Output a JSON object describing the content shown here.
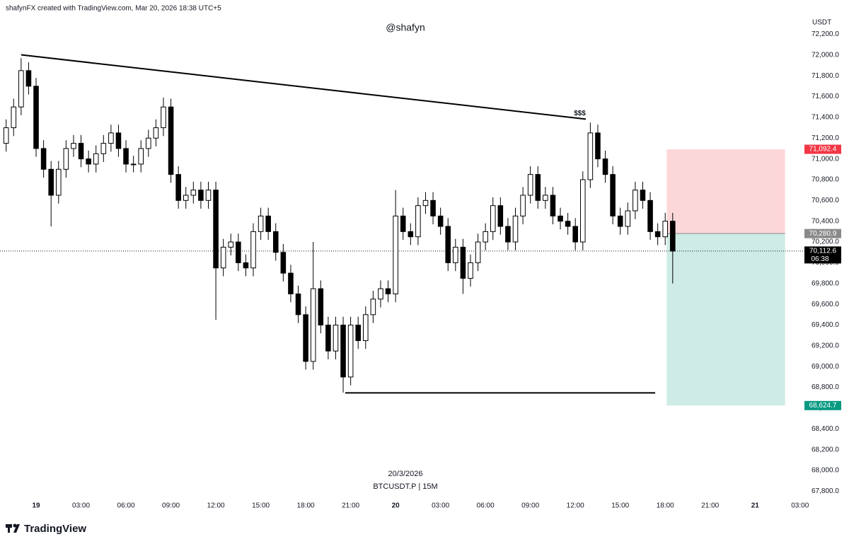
{
  "chart_data": {
    "type": "candlestick",
    "header": "shafynFX created with TradingView.com, Mar 20, 2026 18:38 UTC+5",
    "watermark": "@shafyn",
    "y_unit": "USDT",
    "date_label": "20/3/2026",
    "symbol_label": "BTCUSDT.P | 15M",
    "brand": "TradingView",
    "up_color": "#ffffff",
    "down_color": "#000000",
    "x": [
      -2,
      -1.5,
      -1,
      -0.5,
      0,
      0.5,
      1,
      1.5,
      2,
      2.5,
      3,
      3.5,
      4,
      4.5,
      5,
      5.5,
      6,
      6.5,
      7,
      7.5,
      8,
      8.5,
      9,
      9.5,
      10,
      10.5,
      11,
      11.5,
      12,
      12.5,
      13,
      13.5,
      14,
      14.5,
      15,
      15.5,
      16,
      16.5,
      17,
      17.5,
      18,
      18.5,
      19,
      19.5,
      20,
      20.5,
      21,
      21.5,
      22,
      22.5,
      23,
      23.5,
      24,
      24.5,
      25,
      25.5,
      26,
      26.5,
      27,
      27.5,
      28,
      28.5,
      29,
      29.5,
      30,
      30.5,
      31,
      31.5,
      32,
      32.5,
      33,
      33.5,
      34,
      34.5,
      35,
      35.5,
      36,
      36.5,
      37,
      37.5,
      38,
      38.5,
      39,
      39.5,
      40,
      40.5,
      41,
      41.5,
      42,
      42.5
    ],
    "open": [
      71150,
      71300,
      71500,
      71850,
      71700,
      71100,
      70900,
      70650,
      70900,
      71100,
      71150,
      71000,
      70950,
      71050,
      71150,
      71250,
      71100,
      70950,
      70950,
      71100,
      71200,
      71300,
      71500,
      70850,
      70600,
      70650,
      70700,
      70600,
      70700,
      69950,
      70150,
      70200,
      70000,
      69950,
      70300,
      70450,
      70300,
      70100,
      69900,
      69700,
      69500,
      69050,
      69750,
      69400,
      69150,
      69400,
      68900,
      69400,
      69250,
      69500,
      69650,
      69750,
      69700,
      70450,
      70300,
      70250,
      70550,
      70600,
      70450,
      70350,
      70000,
      70150,
      69850,
      70000,
      70200,
      70300,
      70550,
      70350,
      70200,
      70450,
      70650,
      70850,
      70600,
      70650,
      70450,
      70400,
      70350,
      70200,
      70800,
      71250,
      71000,
      70850,
      70450,
      70350,
      70500,
      70700,
      70600,
      70300,
      70250,
      70400
    ],
    "high": [
      71380,
      71580,
      71970,
      71930,
      71780,
      71180,
      70980,
      70980,
      71180,
      71230,
      71230,
      71080,
      71130,
      71230,
      71330,
      71330,
      71180,
      71030,
      71180,
      71280,
      71380,
      71590,
      71580,
      70930,
      70730,
      70780,
      70780,
      70780,
      70780,
      70230,
      70280,
      70280,
      70080,
      70380,
      70530,
      70530,
      70380,
      70180,
      69980,
      69780,
      69580,
      70200,
      69830,
      69480,
      69480,
      69480,
      69480,
      69480,
      69580,
      69730,
      69830,
      69830,
      70700,
      70530,
      70380,
      70630,
      70680,
      70680,
      70530,
      70430,
      70230,
      70230,
      70080,
      70280,
      70380,
      70630,
      70630,
      70430,
      70530,
      70730,
      70930,
      70930,
      70730,
      70730,
      70530,
      70480,
      70430,
      70880,
      71350,
      71330,
      71080,
      70930,
      70530,
      70580,
      70780,
      70780,
      70680,
      70380,
      70480,
      70480
    ],
    "low": [
      71070,
      71220,
      71420,
      71620,
      71020,
      70820,
      70350,
      70570,
      70820,
      71020,
      70920,
      70870,
      70870,
      70970,
      71070,
      71020,
      70870,
      70870,
      70870,
      71020,
      71120,
      71220,
      70770,
      70520,
      70520,
      70570,
      70520,
      70520,
      69450,
      69870,
      70070,
      69920,
      69870,
      69870,
      70220,
      70220,
      70020,
      69820,
      69620,
      69420,
      68970,
      68970,
      69320,
      69070,
      69070,
      68750,
      68820,
      69170,
      69170,
      69420,
      69570,
      69620,
      69620,
      70220,
      70170,
      70170,
      70470,
      70370,
      70270,
      69920,
      69920,
      69700,
      69770,
      69920,
      70120,
      70220,
      70270,
      70120,
      70120,
      70370,
      70570,
      70520,
      70520,
      70370,
      70320,
      70270,
      70120,
      70120,
      70720,
      70920,
      70770,
      70370,
      70270,
      70270,
      70420,
      70520,
      70220,
      70170,
      70170,
      69800
    ],
    "close": [
      71300,
      71500,
      71850,
      71700,
      71100,
      70900,
      70650,
      70900,
      71100,
      71150,
      71000,
      70950,
      71050,
      71150,
      71250,
      71100,
      70950,
      70950,
      71100,
      71200,
      71300,
      71500,
      70850,
      70600,
      70650,
      70700,
      70600,
      70700,
      69950,
      70150,
      70200,
      70000,
      69950,
      70300,
      70450,
      70300,
      70100,
      69900,
      69700,
      69500,
      69050,
      69750,
      69400,
      69150,
      69400,
      68900,
      69400,
      69250,
      69500,
      69650,
      69750,
      69700,
      70450,
      70300,
      70250,
      70550,
      70600,
      70450,
      70350,
      70000,
      70150,
      69850,
      70000,
      70200,
      70300,
      70550,
      70350,
      70200,
      70450,
      70650,
      70850,
      70600,
      70650,
      70450,
      70400,
      70350,
      70200,
      70800,
      71250,
      71000,
      70850,
      70450,
      70350,
      70500,
      70700,
      70600,
      70300,
      70250,
      70400,
      70112.6
    ],
    "xlim": [
      -2.41,
      51.2
    ],
    "xticks": [
      {
        "value": 0,
        "label": "19"
      },
      {
        "value": 3,
        "label": "03:00"
      },
      {
        "value": 6,
        "label": "06:00"
      },
      {
        "value": 9,
        "label": "09:00"
      },
      {
        "value": 12,
        "label": "12:00"
      },
      {
        "value": 15,
        "label": "15:00"
      },
      {
        "value": 18,
        "label": "18:00"
      },
      {
        "value": 21,
        "label": "21:00"
      },
      {
        "value": 24,
        "label": "20"
      },
      {
        "value": 27,
        "label": "03:00"
      },
      {
        "value": 30,
        "label": "06:00"
      },
      {
        "value": 33,
        "label": "09:00"
      },
      {
        "value": 36,
        "label": "12:00"
      },
      {
        "value": 39,
        "label": "15:00"
      },
      {
        "value": 42,
        "label": "18:00"
      },
      {
        "value": 45,
        "label": "21:00"
      },
      {
        "value": 48,
        "label": "21"
      },
      {
        "value": 51,
        "label": "03:00"
      }
    ],
    "ylim": [
      67680,
      72530
    ],
    "yticks": [
      {
        "value": 67800,
        "label": "67,800.0"
      },
      {
        "value": 68000,
        "label": "68,000.0"
      },
      {
        "value": 68200,
        "label": "68,200.0"
      },
      {
        "value": 68400,
        "label": "68,400.0"
      },
      {
        "value": 68600,
        "label": "68,600.0"
      },
      {
        "value": 68800,
        "label": "68,800.0"
      },
      {
        "value": 69000,
        "label": "69,000.0"
      },
      {
        "value": 69200,
        "label": "69,200.0"
      },
      {
        "value": 69400,
        "label": "69,400.0"
      },
      {
        "value": 69600,
        "label": "69,600.0"
      },
      {
        "value": 69800,
        "label": "69,800.0"
      },
      {
        "value": 70000,
        "label": "70,000.0"
      },
      {
        "value": 70200,
        "label": "70,200.0"
      },
      {
        "value": 70400,
        "label": "70,400.0"
      },
      {
        "value": 70600,
        "label": "70,600.0"
      },
      {
        "value": 70800,
        "label": "70,800.0"
      },
      {
        "value": 71000,
        "label": "71,000.0"
      },
      {
        "value": 71200,
        "label": "71,200.0"
      },
      {
        "value": 71400,
        "label": "71,400.0"
      },
      {
        "value": 71600,
        "label": "71,600.0"
      },
      {
        "value": 71800,
        "label": "71,800.0"
      },
      {
        "value": 72000,
        "label": "72,000.0"
      },
      {
        "value": 72200,
        "label": "72,200.0"
      }
    ],
    "trendlines": [
      {
        "x": [
          -1,
          36.7
        ],
        "y": [
          72002,
          71383
        ]
      },
      {
        "x": [
          20.64,
          41.33
        ],
        "y": [
          68747,
          68747
        ]
      }
    ],
    "annotations": [
      {
        "text": "$$$",
        "x": 36.3,
        "y": 71437
      }
    ],
    "position": {
      "x": [
        42.1,
        50
      ],
      "entry": 70280.9,
      "entry_label": "70,280.9",
      "stop": 71092.4,
      "stop_label": "71,092.4",
      "target": 68624.7,
      "target_label": "68,624.7",
      "stop_color": "#f23645",
      "target_color": "#089981",
      "entry_color": "#8a8a8a"
    },
    "last_price": 70112.6,
    "last_price_label": "70,112.6",
    "countdown": "06:38"
  }
}
